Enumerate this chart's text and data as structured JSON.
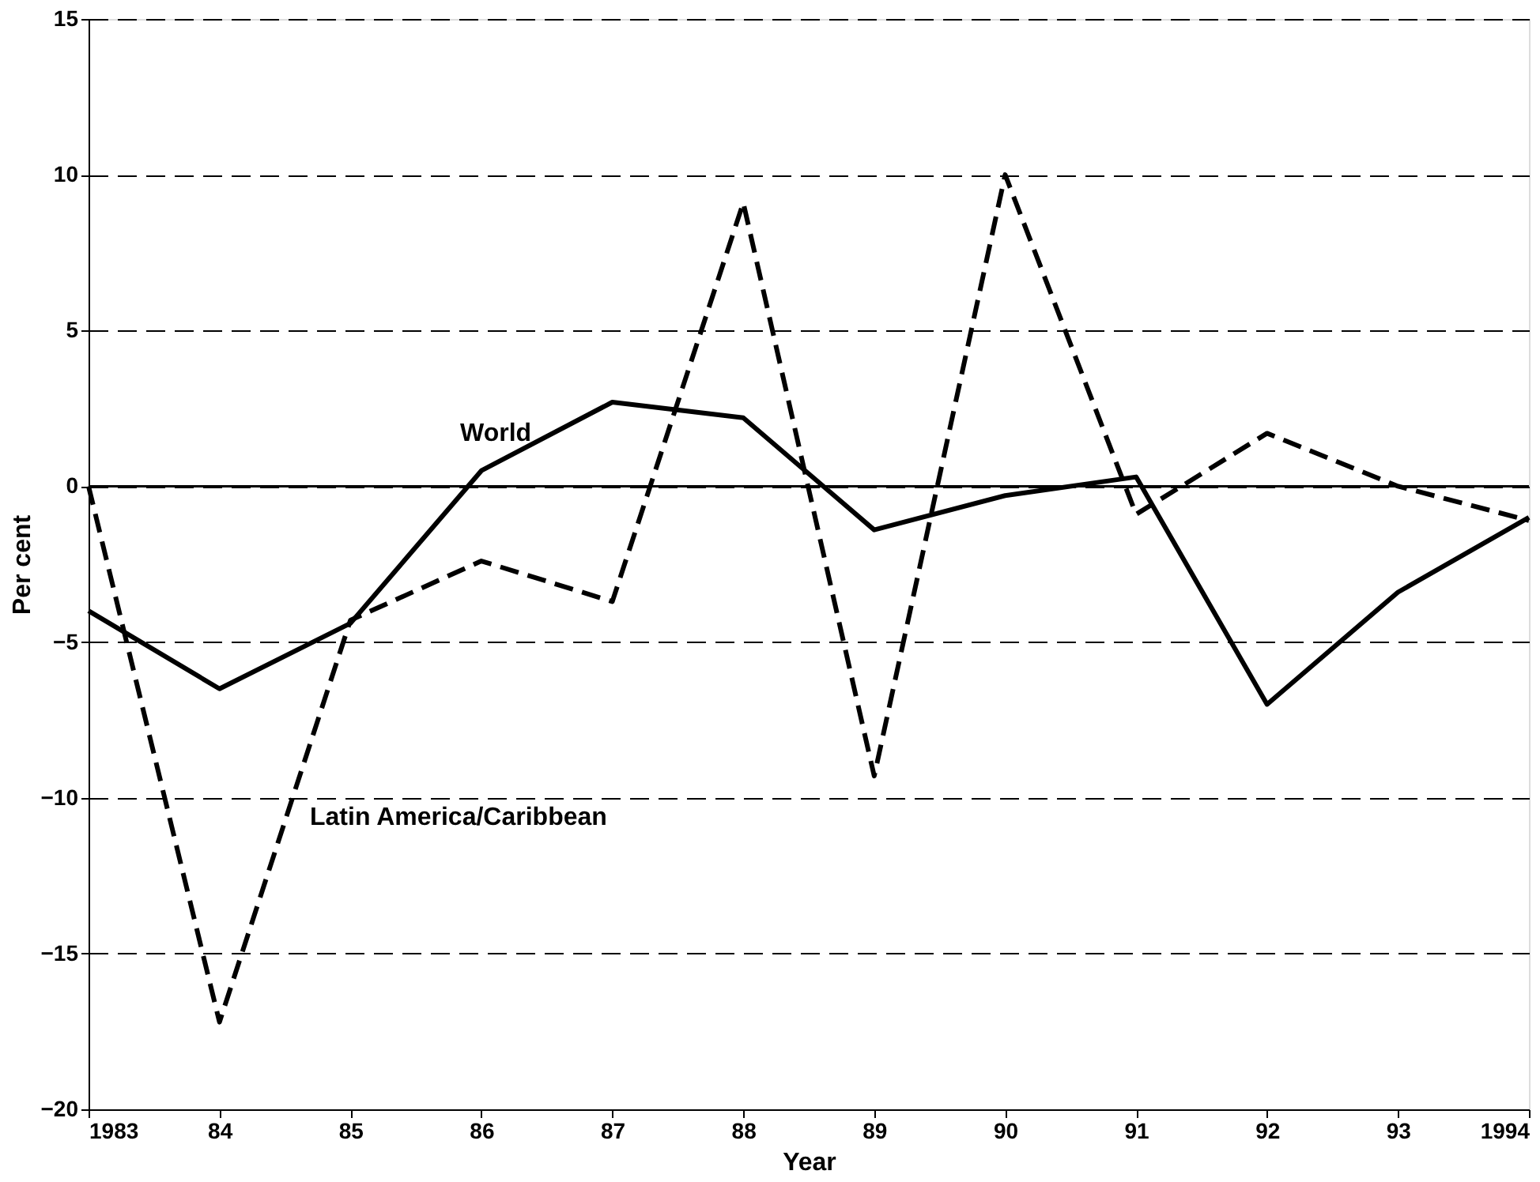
{
  "chart_data": {
    "type": "line",
    "xlabel": "Year",
    "ylabel": "Per cent",
    "x": [
      1983,
      1984,
      1985,
      1986,
      1987,
      1988,
      1989,
      1990,
      1991,
      1992,
      1993,
      1994
    ],
    "xlim": [
      1983,
      1994
    ],
    "xticks": [
      {
        "value": 1983,
        "label": "1983"
      },
      {
        "value": 1984,
        "label": "84"
      },
      {
        "value": 1985,
        "label": "85"
      },
      {
        "value": 1986,
        "label": "86"
      },
      {
        "value": 1987,
        "label": "87"
      },
      {
        "value": 1988,
        "label": "88"
      },
      {
        "value": 1989,
        "label": "89"
      },
      {
        "value": 1990,
        "label": "90"
      },
      {
        "value": 1991,
        "label": "91"
      },
      {
        "value": 1992,
        "label": "92"
      },
      {
        "value": 1993,
        "label": "93"
      },
      {
        "value": 1994,
        "label": "1994"
      }
    ],
    "ylim": [
      -20,
      15
    ],
    "yticks": [
      -20,
      -15,
      -10,
      -5,
      0,
      5,
      10,
      15
    ],
    "grid": "y",
    "legend": false,
    "marker": "none",
    "ref_lines": [
      {
        "axis": "y",
        "value": 0,
        "line_style": "solid",
        "color": "#000000"
      }
    ],
    "series": [
      {
        "name": "World",
        "color": "#000000",
        "line_style": "solid",
        "values": [
          -4,
          -6.5,
          -4.4,
          0.5,
          2.7,
          2.2,
          -1.4,
          -0.3,
          0.3,
          -7,
          -3.4,
          -1
        ]
      },
      {
        "name": "Latin America/Caribbean",
        "color": "#000000",
        "line_style": "dashed",
        "values": [
          0,
          -17.2,
          -4.3,
          -2.4,
          -3.7,
          9.1,
          -9.3,
          10,
          -0.9,
          1.7,
          0,
          -1.1
        ]
      }
    ]
  }
}
